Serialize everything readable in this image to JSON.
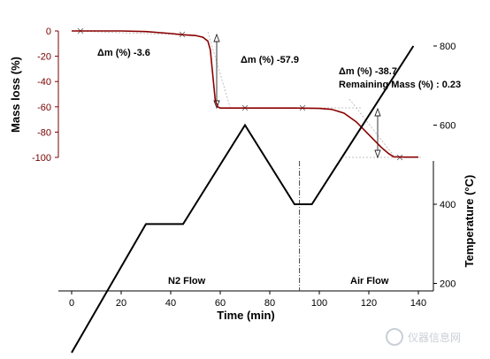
{
  "chart_data": [
    {
      "type": "line",
      "ylabel": "Mass loss (%)",
      "ylim": [
        -100,
        0
      ],
      "yticks": [
        0,
        -20,
        -40,
        -60,
        -80,
        -100
      ],
      "xlim": [
        -5,
        145
      ],
      "x": [
        0,
        10,
        20,
        30,
        40,
        45,
        50,
        53,
        55,
        56,
        57,
        58,
        59,
        60,
        70,
        80,
        90,
        100,
        105,
        110,
        115,
        120,
        125,
        128,
        130,
        135,
        140
      ],
      "series": [
        {
          "values": [
            0,
            0,
            0,
            -0.5,
            -2,
            -3,
            -3.6,
            -5,
            -8,
            -15,
            -35,
            -55,
            -60,
            -61,
            -61,
            -61,
            -61,
            -61.2,
            -62,
            -65,
            -72,
            -82,
            -92,
            -97,
            -99.5,
            -99.8,
            -99.8
          ],
          "color": "#8b0000"
        }
      ],
      "annotations": [
        {
          "text": "Δm (%) -3.6"
        },
        {
          "text": "Δm (%) -57.9"
        },
        {
          "text": "Δm (%) -38.7"
        },
        {
          "text": "Remaining Mass (%) : 0.23"
        }
      ]
    },
    {
      "type": "line",
      "xlabel": "Time (min)",
      "ylabel": "Temperature (°C)",
      "xlim": [
        -5,
        145
      ],
      "xticks": [
        0,
        20,
        40,
        60,
        80,
        100,
        120,
        140
      ],
      "ylim": [
        50,
        850
      ],
      "yticks": [
        200,
        400,
        600,
        800
      ],
      "x": [
        0,
        30,
        45,
        70,
        90,
        97,
        138
      ],
      "series": [
        {
          "values": [
            25,
            350,
            350,
            600,
            400,
            400,
            800
          ],
          "color": "#000000"
        }
      ],
      "regions": [
        {
          "label": "N2 Flow"
        },
        {
          "label": "Air Flow"
        }
      ],
      "divider_x": 92
    }
  ],
  "watermark": "仪器信息网"
}
